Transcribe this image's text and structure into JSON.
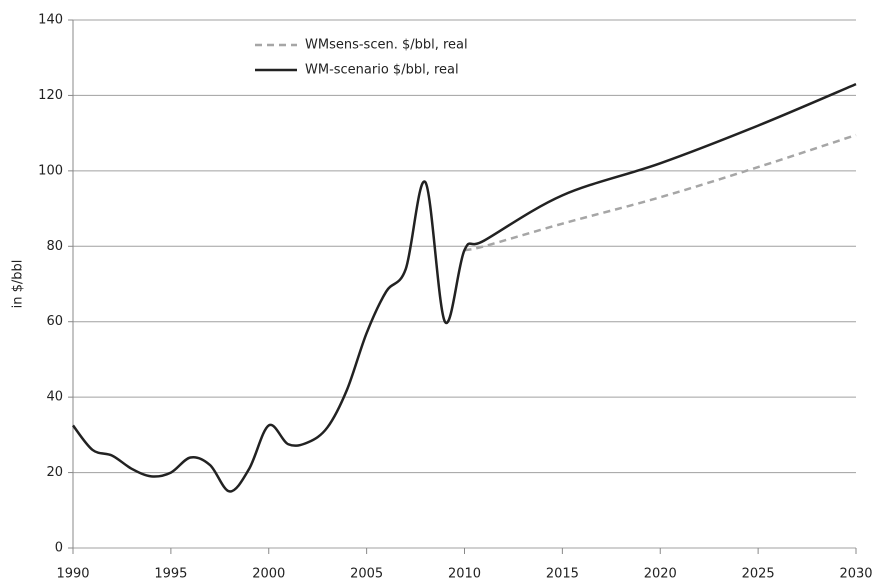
{
  "chart_data": {
    "type": "line",
    "y_label": "in $/bbl",
    "series": [
      {
        "name": "WMsens-scen. $/bbl, real",
        "color": "#a6a6a6",
        "dash": true,
        "x": [
          2010,
          2011,
          2015,
          2020,
          2025,
          2030
        ],
        "values": [
          79,
          80,
          86,
          93,
          101,
          109.5
        ]
      },
      {
        "name": "WM-scenario $/bbl, real",
        "color": "#222222",
        "dash": false,
        "x": [
          1990,
          1991,
          1992,
          1993,
          1994,
          1995,
          1996,
          1997,
          1998,
          1999,
          2000,
          2001,
          2002,
          2003,
          2004,
          2005,
          2006,
          2007,
          2008,
          2009,
          2010,
          2011,
          2015,
          2020,
          2025,
          2030
        ],
        "values": [
          32.5,
          26,
          24.5,
          21,
          19,
          20,
          24,
          22,
          15,
          21,
          32.5,
          27.5,
          28,
          32,
          42,
          57,
          68,
          74,
          97,
          60,
          79,
          81.5,
          93.5,
          102,
          112,
          123
        ]
      }
    ],
    "xlim": [
      1990,
      2030
    ],
    "xticks": [
      1990,
      1995,
      2000,
      2005,
      2010,
      2015,
      2020,
      2025,
      2030
    ],
    "ylim": [
      0,
      140
    ],
    "yticks": [
      0,
      20,
      40,
      60,
      80,
      100,
      120,
      140
    ],
    "grid": true,
    "legend": "top-left"
  }
}
